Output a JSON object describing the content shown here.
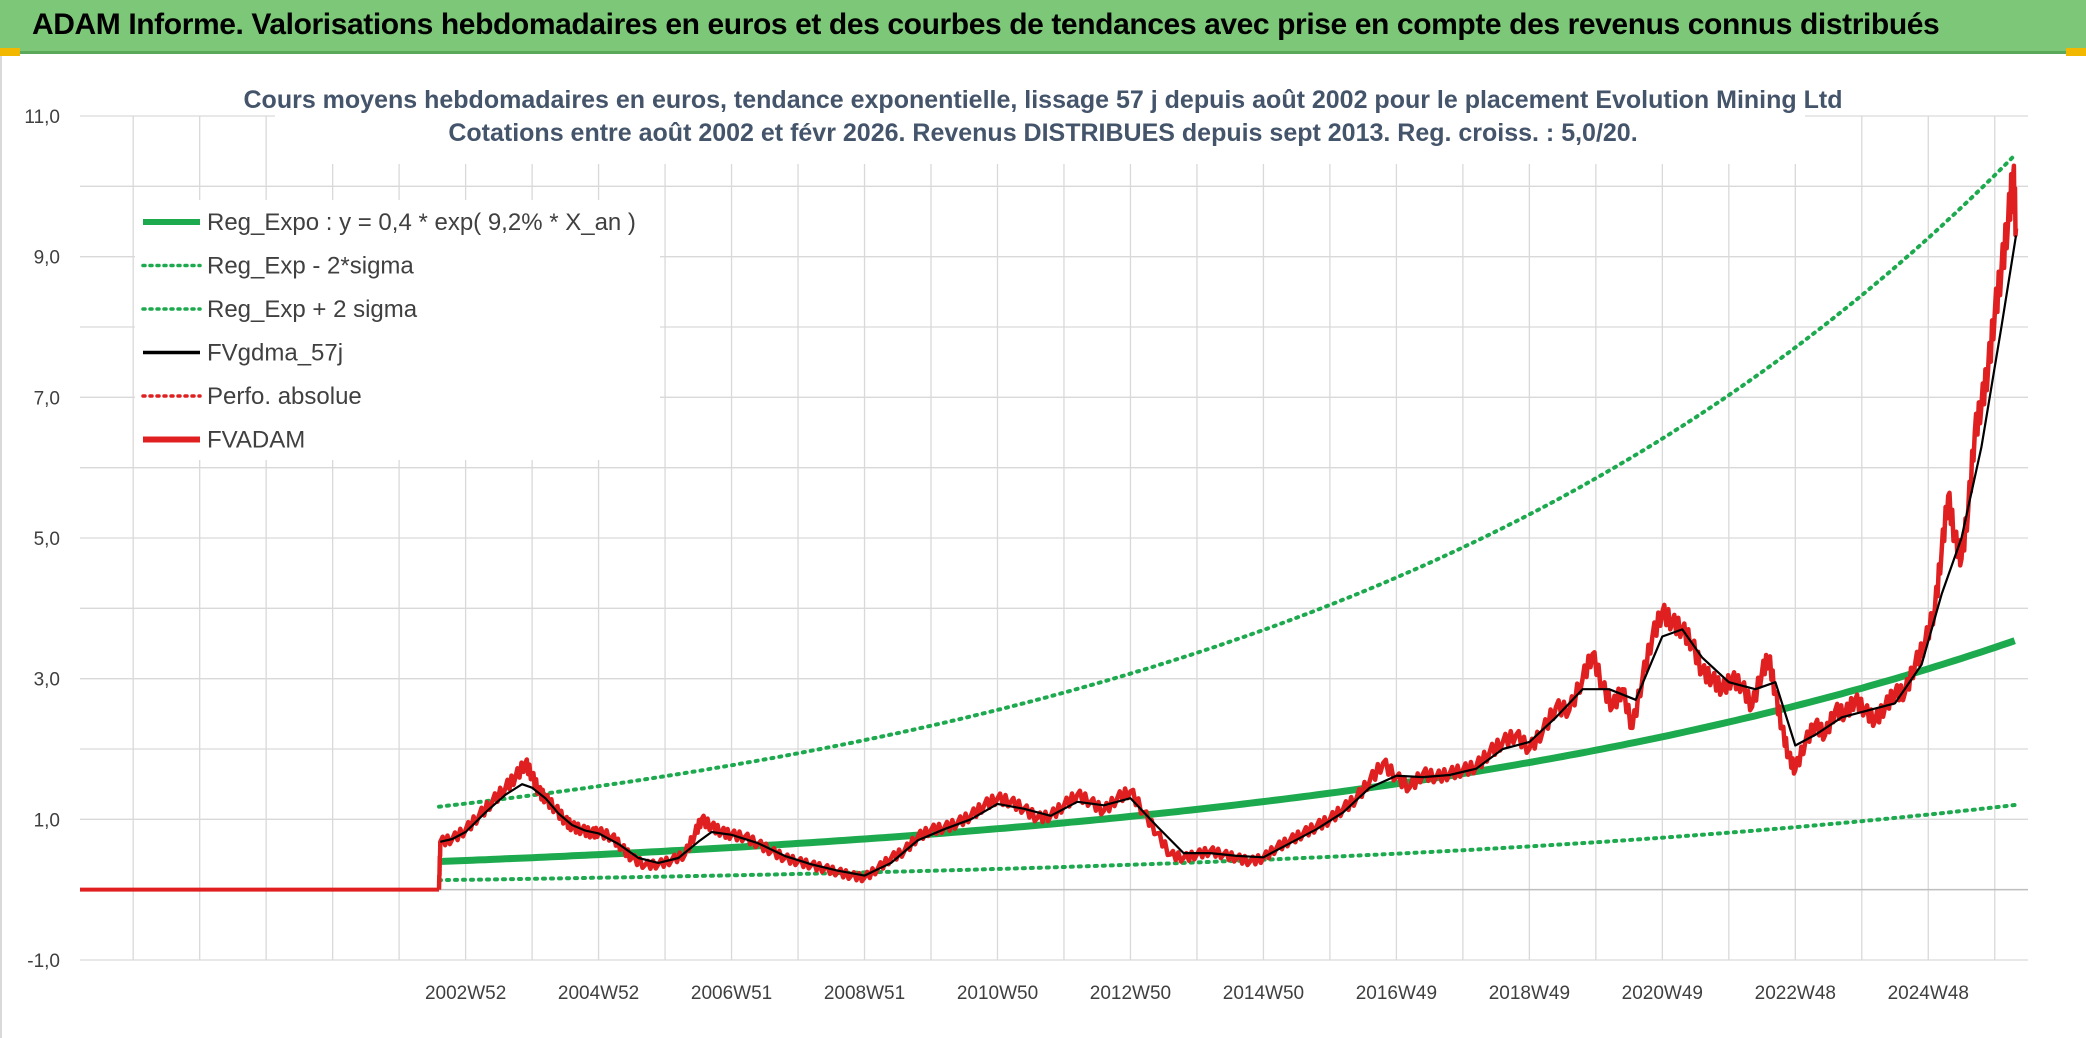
{
  "banner": {
    "title": "ADAM Informe. Valorisations hebdomadaires en euros et des courbes de tendances avec prise en compte des revenus connus distribués",
    "bg_color": "#7dc878"
  },
  "chart_data": {
    "type": "line",
    "title_lines": [
      "Cours moyens hebdomadaires en euros, tendance exponentielle, lissage 57 j depuis août 2002 pour le placement Evolution Mining Ltd",
      "Cotations entre août 2002 et févr 2026. Revenus DISTRIBUES depuis sept 2013. Reg. croiss. : 5,0/20."
    ],
    "xlabel": "",
    "ylabel": "",
    "ylim": [
      -1,
      11
    ],
    "yticks": [
      "-1,0",
      "1,0",
      "3,0",
      "5,0",
      "7,0",
      "9,0",
      "11,0"
    ],
    "ytick_values": [
      -1,
      1,
      3,
      5,
      7,
      9,
      11
    ],
    "x_range": [
      1997.2,
      2026.5
    ],
    "xticks": [
      "2002W52",
      "2004W52",
      "2006W51",
      "2008W51",
      "2010W50",
      "2012W50",
      "2014W50",
      "2016W49",
      "2018W49",
      "2020W49",
      "2022W48",
      "2024W48"
    ],
    "xtick_values": [
      2003.0,
      2005.0,
      2007.0,
      2009.0,
      2011.0,
      2013.0,
      2015.0,
      2017.0,
      2019.0,
      2021.0,
      2023.0,
      2025.0
    ],
    "grid": true,
    "legend_position": "top-left",
    "legend": [
      {
        "label": "Reg_Expo : y = 0,4 * exp( 9,2% *  X_an )",
        "style": "solid-thick",
        "color": "#1daa4e"
      },
      {
        "label": "Reg_Exp - 2*sigma",
        "style": "dotted",
        "color": "#1daa4e"
      },
      {
        "label": "Reg_Exp + 2 sigma",
        "style": "dotted",
        "color": "#1daa4e"
      },
      {
        "label": "FVgdma_57j",
        "style": "solid",
        "color": "#000000"
      },
      {
        "label": "Perfo. absolue",
        "style": "dotted",
        "color": "#e02020"
      },
      {
        "label": "FVADAM",
        "style": "solid-thick",
        "color": "#e02020"
      }
    ],
    "regression": {
      "a": 0.4,
      "b": 0.092,
      "x0": 2002.6,
      "x_end": 2026.3,
      "lower_factor": 0.34,
      "upper_factor": 2.95
    },
    "flat_segment": {
      "x_start": 1997.2,
      "x_end": 2002.6,
      "y": 0.0
    },
    "series": [
      {
        "name": "FVADAM",
        "color": "#e02020",
        "points": [
          [
            2002.6,
            0.0
          ],
          [
            2002.62,
            0.68
          ],
          [
            2002.8,
            0.72
          ],
          [
            2003.0,
            0.85
          ],
          [
            2003.2,
            1.05
          ],
          [
            2003.4,
            1.25
          ],
          [
            2003.6,
            1.45
          ],
          [
            2003.75,
            1.6
          ],
          [
            2003.9,
            1.8
          ],
          [
            2004.0,
            1.62
          ],
          [
            2004.1,
            1.4
          ],
          [
            2004.2,
            1.3
          ],
          [
            2004.35,
            1.15
          ],
          [
            2004.5,
            0.98
          ],
          [
            2004.6,
            0.9
          ],
          [
            2004.75,
            0.85
          ],
          [
            2004.9,
            0.8
          ],
          [
            2005.0,
            0.82
          ],
          [
            2005.2,
            0.75
          ],
          [
            2005.35,
            0.6
          ],
          [
            2005.5,
            0.45
          ],
          [
            2005.7,
            0.35
          ],
          [
            2005.9,
            0.36
          ],
          [
            2006.1,
            0.42
          ],
          [
            2006.3,
            0.5
          ],
          [
            2006.45,
            0.8
          ],
          [
            2006.55,
            1.0
          ],
          [
            2006.7,
            0.9
          ],
          [
            2006.85,
            0.82
          ],
          [
            2007.0,
            0.78
          ],
          [
            2007.2,
            0.75
          ],
          [
            2007.4,
            0.65
          ],
          [
            2007.6,
            0.55
          ],
          [
            2007.8,
            0.45
          ],
          [
            2008.0,
            0.4
          ],
          [
            2008.2,
            0.35
          ],
          [
            2008.4,
            0.3
          ],
          [
            2008.6,
            0.25
          ],
          [
            2008.8,
            0.2
          ],
          [
            2009.0,
            0.17
          ],
          [
            2009.2,
            0.3
          ],
          [
            2009.4,
            0.45
          ],
          [
            2009.6,
            0.55
          ],
          [
            2009.8,
            0.75
          ],
          [
            2010.0,
            0.85
          ],
          [
            2010.2,
            0.88
          ],
          [
            2010.4,
            0.95
          ],
          [
            2010.6,
            1.05
          ],
          [
            2010.8,
            1.2
          ],
          [
            2011.0,
            1.3
          ],
          [
            2011.2,
            1.25
          ],
          [
            2011.4,
            1.15
          ],
          [
            2011.6,
            1.02
          ],
          [
            2011.8,
            1.05
          ],
          [
            2012.0,
            1.2
          ],
          [
            2012.2,
            1.35
          ],
          [
            2012.4,
            1.25
          ],
          [
            2012.6,
            1.12
          ],
          [
            2012.8,
            1.3
          ],
          [
            2013.0,
            1.4
          ],
          [
            2013.2,
            1.1
          ],
          [
            2013.4,
            0.8
          ],
          [
            2013.6,
            0.5
          ],
          [
            2013.8,
            0.45
          ],
          [
            2014.0,
            0.5
          ],
          [
            2014.2,
            0.55
          ],
          [
            2014.4,
            0.5
          ],
          [
            2014.6,
            0.45
          ],
          [
            2014.8,
            0.4
          ],
          [
            2015.0,
            0.45
          ],
          [
            2015.2,
            0.6
          ],
          [
            2015.4,
            0.7
          ],
          [
            2015.6,
            0.8
          ],
          [
            2015.8,
            0.9
          ],
          [
            2016.0,
            1.0
          ],
          [
            2016.2,
            1.15
          ],
          [
            2016.4,
            1.3
          ],
          [
            2016.6,
            1.55
          ],
          [
            2016.8,
            1.8
          ],
          [
            2017.0,
            1.6
          ],
          [
            2017.2,
            1.45
          ],
          [
            2017.4,
            1.65
          ],
          [
            2017.6,
            1.6
          ],
          [
            2017.8,
            1.65
          ],
          [
            2018.0,
            1.7
          ],
          [
            2018.2,
            1.75
          ],
          [
            2018.4,
            1.95
          ],
          [
            2018.6,
            2.1
          ],
          [
            2018.8,
            2.2
          ],
          [
            2019.0,
            2.0
          ],
          [
            2019.2,
            2.25
          ],
          [
            2019.4,
            2.6
          ],
          [
            2019.6,
            2.55
          ],
          [
            2019.8,
            3.0
          ],
          [
            2019.95,
            3.35
          ],
          [
            2020.1,
            2.9
          ],
          [
            2020.25,
            2.6
          ],
          [
            2020.4,
            2.85
          ],
          [
            2020.55,
            2.3
          ],
          [
            2020.7,
            3.0
          ],
          [
            2020.85,
            3.6
          ],
          [
            2021.0,
            3.95
          ],
          [
            2021.15,
            3.8
          ],
          [
            2021.3,
            3.7
          ],
          [
            2021.45,
            3.5
          ],
          [
            2021.6,
            3.1
          ],
          [
            2021.75,
            3.0
          ],
          [
            2021.9,
            2.85
          ],
          [
            2022.05,
            3.0
          ],
          [
            2022.2,
            2.9
          ],
          [
            2022.35,
            2.6
          ],
          [
            2022.5,
            3.1
          ],
          [
            2022.6,
            3.3
          ],
          [
            2022.7,
            2.8
          ],
          [
            2022.8,
            2.3
          ],
          [
            2022.9,
            1.9
          ],
          [
            2023.0,
            1.7
          ],
          [
            2023.15,
            2.1
          ],
          [
            2023.3,
            2.35
          ],
          [
            2023.45,
            2.2
          ],
          [
            2023.6,
            2.55
          ],
          [
            2023.75,
            2.5
          ],
          [
            2023.9,
            2.7
          ],
          [
            2024.05,
            2.55
          ],
          [
            2024.2,
            2.4
          ],
          [
            2024.35,
            2.6
          ],
          [
            2024.5,
            2.8
          ],
          [
            2024.65,
            2.8
          ],
          [
            2024.8,
            3.2
          ],
          [
            2024.95,
            3.5
          ],
          [
            2025.1,
            4.0
          ],
          [
            2025.2,
            4.8
          ],
          [
            2025.3,
            5.6
          ],
          [
            2025.4,
            5.0
          ],
          [
            2025.5,
            4.7
          ],
          [
            2025.6,
            5.4
          ],
          [
            2025.7,
            6.5
          ],
          [
            2025.8,
            6.9
          ],
          [
            2025.9,
            7.4
          ],
          [
            2026.0,
            8.2
          ],
          [
            2026.1,
            8.8
          ],
          [
            2026.2,
            9.5
          ],
          [
            2026.28,
            10.2
          ],
          [
            2026.32,
            9.4
          ]
        ]
      },
      {
        "name": "FVgdma_57j",
        "color": "#000000",
        "points": [
          [
            2002.62,
            0.68
          ],
          [
            2002.8,
            0.72
          ],
          [
            2003.0,
            0.82
          ],
          [
            2003.3,
            1.1
          ],
          [
            2003.6,
            1.35
          ],
          [
            2003.85,
            1.5
          ],
          [
            2004.0,
            1.45
          ],
          [
            2004.2,
            1.3
          ],
          [
            2004.4,
            1.08
          ],
          [
            2004.6,
            0.92
          ],
          [
            2004.8,
            0.84
          ],
          [
            2005.0,
            0.8
          ],
          [
            2005.3,
            0.65
          ],
          [
            2005.6,
            0.45
          ],
          [
            2005.9,
            0.38
          ],
          [
            2006.2,
            0.45
          ],
          [
            2006.5,
            0.68
          ],
          [
            2006.7,
            0.82
          ],
          [
            2007.0,
            0.78
          ],
          [
            2007.4,
            0.66
          ],
          [
            2007.8,
            0.48
          ],
          [
            2008.2,
            0.36
          ],
          [
            2008.6,
            0.27
          ],
          [
            2009.0,
            0.2
          ],
          [
            2009.4,
            0.38
          ],
          [
            2009.8,
            0.7
          ],
          [
            2010.2,
            0.86
          ],
          [
            2010.6,
            1.0
          ],
          [
            2011.0,
            1.22
          ],
          [
            2011.4,
            1.15
          ],
          [
            2011.8,
            1.05
          ],
          [
            2012.2,
            1.25
          ],
          [
            2012.6,
            1.2
          ],
          [
            2013.0,
            1.3
          ],
          [
            2013.4,
            0.9
          ],
          [
            2013.8,
            0.52
          ],
          [
            2014.2,
            0.52
          ],
          [
            2014.6,
            0.48
          ],
          [
            2015.0,
            0.46
          ],
          [
            2015.4,
            0.66
          ],
          [
            2015.8,
            0.86
          ],
          [
            2016.2,
            1.1
          ],
          [
            2016.6,
            1.45
          ],
          [
            2017.0,
            1.62
          ],
          [
            2017.4,
            1.6
          ],
          [
            2017.8,
            1.63
          ],
          [
            2018.2,
            1.72
          ],
          [
            2018.6,
            2.0
          ],
          [
            2019.0,
            2.1
          ],
          [
            2019.4,
            2.45
          ],
          [
            2019.8,
            2.85
          ],
          [
            2020.2,
            2.85
          ],
          [
            2020.6,
            2.7
          ],
          [
            2021.0,
            3.6
          ],
          [
            2021.3,
            3.7
          ],
          [
            2021.6,
            3.3
          ],
          [
            2022.0,
            2.95
          ],
          [
            2022.4,
            2.85
          ],
          [
            2022.7,
            2.95
          ],
          [
            2023.0,
            2.05
          ],
          [
            2023.3,
            2.2
          ],
          [
            2023.7,
            2.45
          ],
          [
            2024.1,
            2.55
          ],
          [
            2024.5,
            2.65
          ],
          [
            2024.9,
            3.2
          ],
          [
            2025.2,
            4.2
          ],
          [
            2025.5,
            5.0
          ],
          [
            2025.8,
            6.3
          ],
          [
            2026.1,
            8.0
          ],
          [
            2026.32,
            9.3
          ]
        ]
      }
    ]
  }
}
